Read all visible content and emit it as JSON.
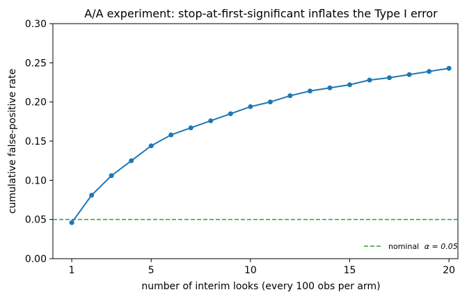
{
  "chart_data": {
    "type": "line",
    "title": "A/A experiment: stop-at-first-significant inflates the Type I error",
    "xlabel": "number of interim looks (every 100 obs per arm)",
    "ylabel": "cumulative false-positive rate",
    "x": [
      1,
      2,
      3,
      4,
      5,
      6,
      7,
      8,
      9,
      10,
      11,
      12,
      13,
      14,
      15,
      16,
      17,
      18,
      19,
      20
    ],
    "series": [
      {
        "values": [
          0.046,
          0.081,
          0.106,
          0.125,
          0.144,
          0.158,
          0.167,
          0.176,
          0.185,
          0.194,
          0.2,
          0.208,
          0.214,
          0.218,
          0.222,
          0.228,
          0.231,
          0.235,
          0.239,
          0.243
        ],
        "color": "#1f77b4",
        "marker": "circle"
      }
    ],
    "reference_line": {
      "y": 0.05,
      "label": "nominal α = 0.05",
      "label_prefix": "nominal",
      "label_symbol": "α = 0.05",
      "color": "#2ca02c",
      "style": "dashed"
    },
    "xlim": [
      0.05,
      20.45
    ],
    "ylim": [
      0.0,
      0.3
    ],
    "xticks": [
      1,
      5,
      10,
      15,
      20
    ],
    "yticks": [
      0.0,
      0.05,
      0.1,
      0.15,
      0.2,
      0.25,
      0.3
    ],
    "ytick_labels": [
      "0.00",
      "0.05",
      "0.10",
      "0.15",
      "0.20",
      "0.25",
      "0.30"
    ],
    "legend_position": "bottom-right",
    "grid": false
  }
}
